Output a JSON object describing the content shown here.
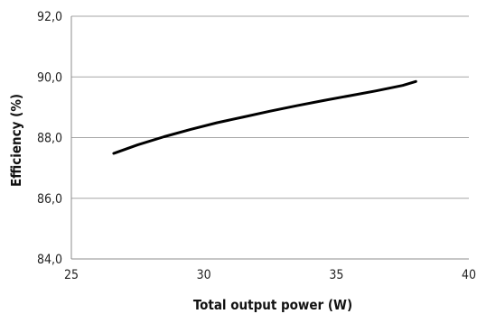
{
  "chart_data": {
    "type": "line",
    "title": "",
    "xlabel": "Total output power (W)",
    "ylabel": "Efficiency  (%)",
    "xlim": [
      25,
      40
    ],
    "ylim": [
      84,
      92
    ],
    "x_ticks": [
      "25",
      "30",
      "35",
      "40"
    ],
    "y_ticks": [
      "84,0",
      "86,0",
      "88,0",
      "90,0",
      "92,0"
    ],
    "grid": "horizontal",
    "legend": "none",
    "series": [
      {
        "line_color": "#000000",
        "x": [
          26.6,
          27.5,
          28.5,
          29.5,
          30.5,
          31.5,
          32.5,
          33.5,
          34.5,
          35.5,
          36.5,
          37.5,
          38.0
        ],
        "y": [
          87.48,
          87.76,
          88.03,
          88.27,
          88.49,
          88.68,
          88.87,
          89.05,
          89.22,
          89.38,
          89.54,
          89.72,
          89.85
        ]
      }
    ]
  }
}
